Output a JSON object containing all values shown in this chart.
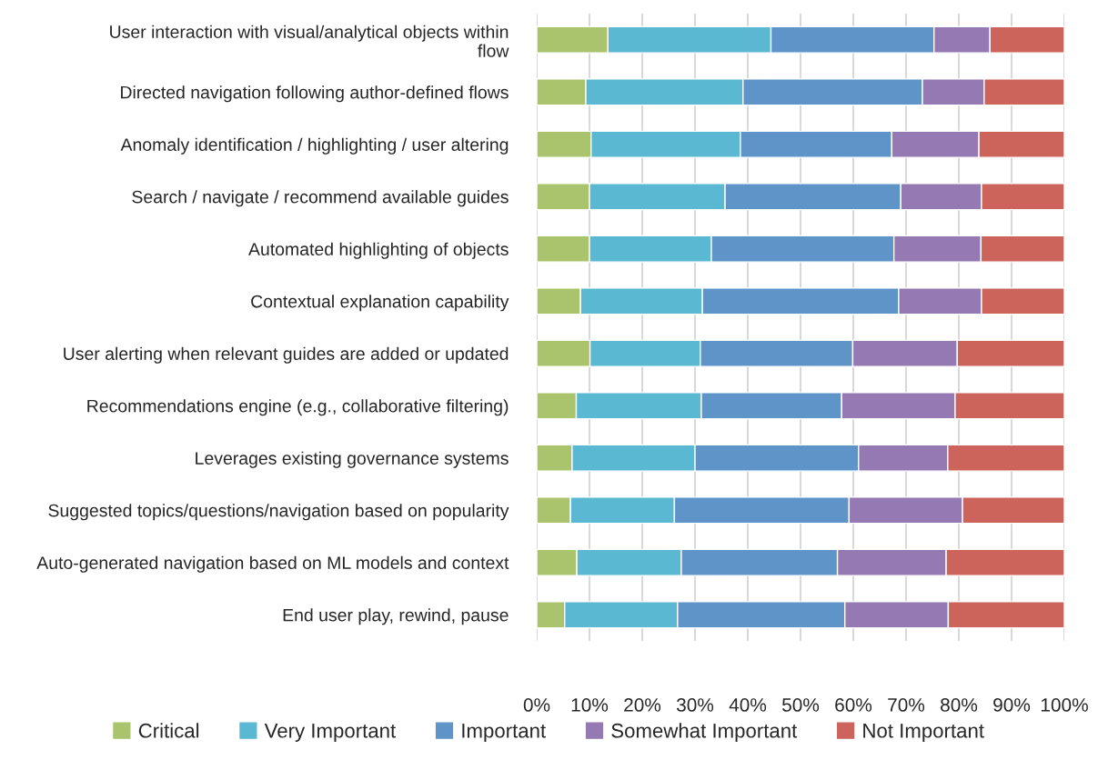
{
  "chart_data": {
    "type": "bar",
    "orientation": "horizontal",
    "stacked": true,
    "categories": [
      "User interaction with visual/analytical objects within flow",
      "Directed navigation following author-defined flows",
      "Anomaly identification / highlighting / user altering",
      "Search / navigate / recommend available guides",
      "Automated highlighting of objects",
      "Contextual explanation capability",
      "User alerting when relevant guides are added or updated",
      "Recommendations engine (e.g., collaborative filtering)",
      "Leverages existing governance systems",
      "Suggested topics/questions/navigation based on popularity",
      "Auto-generated navigation based on ML models and context",
      "End user play, rewind, pause"
    ],
    "series": [
      {
        "name": "Critical",
        "color": "#a9c46c",
        "values": [
          13.5,
          9.3,
          10.3,
          10.0,
          10.0,
          8.3,
          10.1,
          7.5,
          6.7,
          6.4,
          7.6,
          5.3
        ]
      },
      {
        "name": "Very Important",
        "color": "#5bb8d2",
        "values": [
          30.9,
          29.8,
          28.3,
          25.7,
          23.1,
          23.1,
          20.9,
          23.7,
          23.3,
          19.7,
          19.8,
          21.4
        ]
      },
      {
        "name": "Important",
        "color": "#5f94c8",
        "values": [
          30.9,
          34.0,
          28.7,
          33.3,
          34.6,
          37.2,
          28.9,
          26.6,
          31.0,
          33.1,
          29.6,
          31.7
        ]
      },
      {
        "name": "Somewhat Important",
        "color": "#9479b2",
        "values": [
          10.6,
          11.7,
          16.5,
          15.3,
          16.5,
          15.7,
          19.8,
          21.5,
          16.9,
          21.5,
          20.6,
          19.6
        ]
      },
      {
        "name": "Not Important",
        "color": "#cc645c",
        "values": [
          14.1,
          15.2,
          16.2,
          15.7,
          15.8,
          15.7,
          20.3,
          20.7,
          22.1,
          19.3,
          22.4,
          22.0
        ]
      }
    ],
    "xlim": [
      0,
      100
    ],
    "xticks": [
      {
        "value": 0,
        "label": "0%"
      },
      {
        "value": 10,
        "label": "10%"
      },
      {
        "value": 20,
        "label": "20%"
      },
      {
        "value": 30,
        "label": "30%"
      },
      {
        "value": 40,
        "label": "40%"
      },
      {
        "value": 50,
        "label": "50%"
      },
      {
        "value": 60,
        "label": "60%"
      },
      {
        "value": 70,
        "label": "70%"
      },
      {
        "value": 80,
        "label": "80%"
      },
      {
        "value": 90,
        "label": "90%"
      },
      {
        "value": 100,
        "label": "100%"
      }
    ],
    "grid": "x",
    "legend": "bottom"
  }
}
